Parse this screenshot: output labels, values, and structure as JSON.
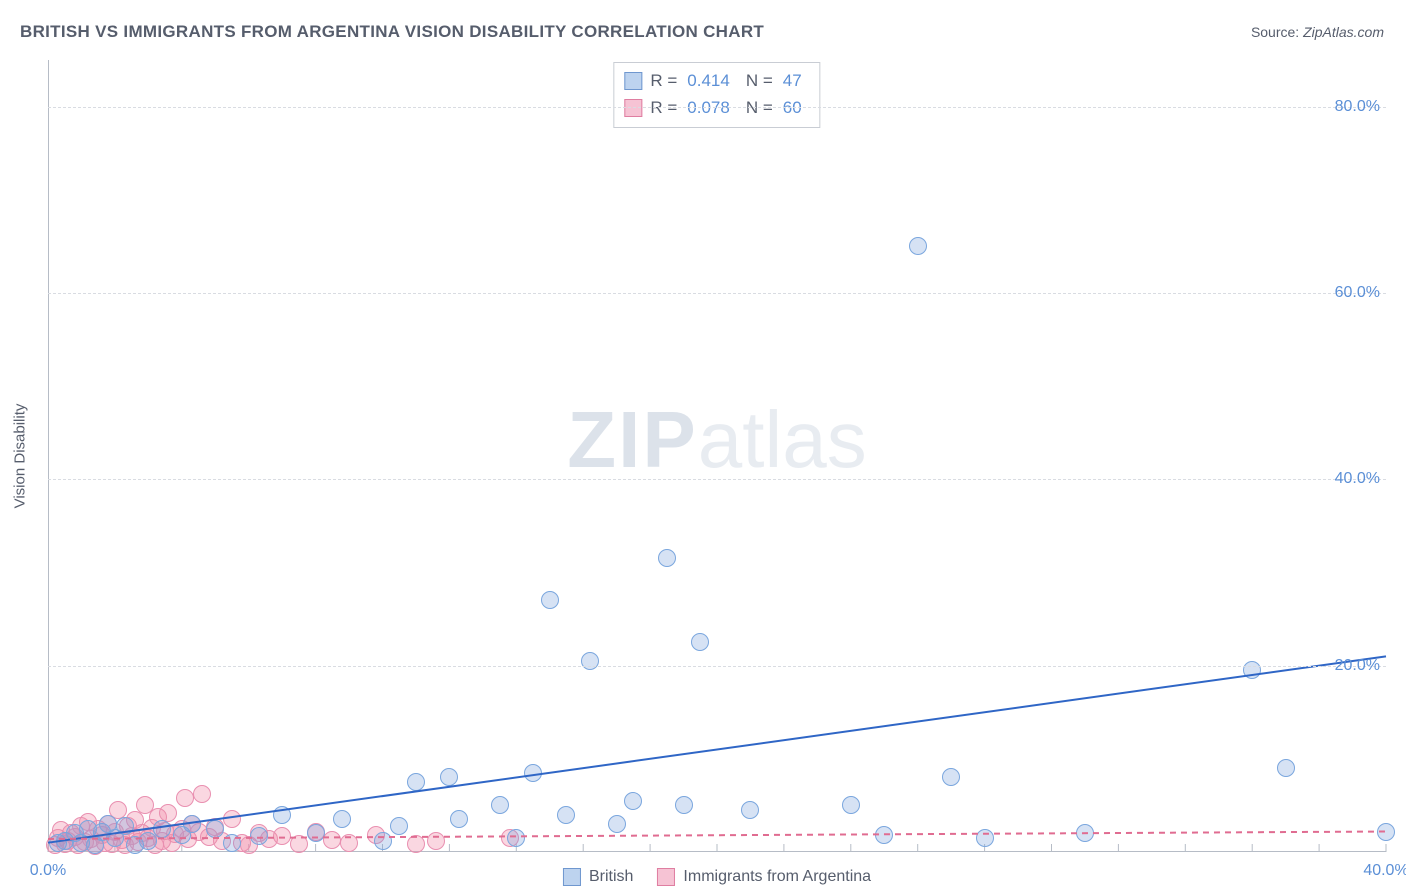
{
  "title": "BRITISH VS IMMIGRANTS FROM ARGENTINA VISION DISABILITY CORRELATION CHART",
  "source": {
    "label": "Source: ",
    "value": "ZipAtlas.com"
  },
  "ylabel": "Vision Disability",
  "watermark": {
    "bold": "ZIP",
    "light": "atlas"
  },
  "chart": {
    "type": "scatter",
    "background_color": "#ffffff",
    "grid_color": "#d9dce2",
    "axis_color": "#b6bcc6",
    "tick_font_color": "#5b8fd6",
    "label_font_color": "#565d6c",
    "title_fontsize": 17,
    "label_fontsize": 15,
    "tick_fontsize": 16,
    "xlim": [
      0,
      40
    ],
    "ylim": [
      0,
      85
    ],
    "x_major_ticks": [
      0,
      40
    ],
    "x_minor_step": 2,
    "y_ticks": [
      20,
      40,
      60,
      80
    ],
    "x_tick_format": "{v}.0%",
    "y_tick_format": "{v}.0%",
    "marker_radius": 9,
    "marker_stroke_width": 1,
    "line_width": 2,
    "series": [
      {
        "name": "British",
        "color_fill": "rgba(120,160,220,0.30)",
        "color_stroke": "#7aa6de",
        "legend_swatch_fill": "#bdd3ef",
        "legend_swatch_stroke": "#6f97cf",
        "R": "0.414",
        "N": "47",
        "trend": {
          "x1": 0,
          "y1": 1.0,
          "x2": 40,
          "y2": 21.0,
          "dash": "none",
          "color": "#2f66c6"
        },
        "points": [
          [
            0.3,
            1.0
          ],
          [
            0.5,
            1.2
          ],
          [
            0.8,
            2.0
          ],
          [
            1.0,
            1.0
          ],
          [
            1.2,
            2.5
          ],
          [
            1.4,
            0.8
          ],
          [
            1.6,
            2.2
          ],
          [
            1.8,
            3.0
          ],
          [
            2.0,
            1.5
          ],
          [
            2.3,
            2.8
          ],
          [
            2.6,
            0.7
          ],
          [
            3.0,
            1.2
          ],
          [
            3.4,
            2.5
          ],
          [
            4.0,
            1.8
          ],
          [
            4.3,
            3.0
          ],
          [
            5.0,
            2.5
          ],
          [
            5.5,
            1.0
          ],
          [
            6.3,
            1.7
          ],
          [
            7.0,
            4.0
          ],
          [
            8.0,
            2.0
          ],
          [
            8.8,
            3.5
          ],
          [
            10.0,
            1.2
          ],
          [
            10.5,
            2.8
          ],
          [
            11.0,
            7.5
          ],
          [
            12.0,
            8.0
          ],
          [
            12.3,
            3.5
          ],
          [
            13.5,
            5.0
          ],
          [
            14.0,
            1.5
          ],
          [
            14.5,
            8.5
          ],
          [
            15.0,
            27.0
          ],
          [
            15.5,
            4.0
          ],
          [
            16.2,
            20.5
          ],
          [
            17.0,
            3.0
          ],
          [
            17.5,
            5.5
          ],
          [
            18.5,
            31.5
          ],
          [
            19.0,
            5.0
          ],
          [
            19.5,
            22.5
          ],
          [
            21.0,
            4.5
          ],
          [
            24.0,
            5.0
          ],
          [
            25.0,
            1.8
          ],
          [
            26.0,
            65.0
          ],
          [
            27.0,
            8.0
          ],
          [
            28.0,
            1.5
          ],
          [
            31.0,
            2.0
          ],
          [
            36.0,
            19.5
          ],
          [
            37.0,
            9.0
          ],
          [
            40.0,
            2.2
          ]
        ]
      },
      {
        "name": "Immigrants from Argentina",
        "color_fill": "rgba(240,140,170,0.35)",
        "color_stroke": "#e98fb0",
        "legend_swatch_fill": "#f6c3d4",
        "legend_swatch_stroke": "#df7ea1",
        "R": "0.078",
        "N": "60",
        "trend": {
          "x1": 0,
          "y1": 1.4,
          "x2": 40,
          "y2": 2.2,
          "dash": "6,5",
          "color": "#e06c91"
        },
        "points": [
          [
            0.2,
            0.8
          ],
          [
            0.3,
            1.5
          ],
          [
            0.4,
            2.4
          ],
          [
            0.5,
            0.9
          ],
          [
            0.6,
            1.2
          ],
          [
            0.7,
            2.0
          ],
          [
            0.8,
            1.6
          ],
          [
            0.9,
            0.7
          ],
          [
            1.0,
            2.8
          ],
          [
            1.1,
            1.1
          ],
          [
            1.2,
            3.2
          ],
          [
            1.3,
            1.4
          ],
          [
            1.4,
            0.6
          ],
          [
            1.5,
            2.5
          ],
          [
            1.6,
            1.8
          ],
          [
            1.7,
            1.0
          ],
          [
            1.8,
            3.0
          ],
          [
            1.9,
            0.9
          ],
          [
            2.0,
            2.2
          ],
          [
            2.1,
            4.5
          ],
          [
            2.2,
            1.3
          ],
          [
            2.3,
            0.8
          ],
          [
            2.4,
            2.8
          ],
          [
            2.5,
            1.7
          ],
          [
            2.6,
            3.4
          ],
          [
            2.7,
            1.1
          ],
          [
            2.8,
            2.0
          ],
          [
            2.9,
            5.0
          ],
          [
            3.0,
            1.5
          ],
          [
            3.1,
            2.6
          ],
          [
            3.2,
            0.7
          ],
          [
            3.3,
            3.8
          ],
          [
            3.4,
            1.2
          ],
          [
            3.5,
            2.3
          ],
          [
            3.6,
            4.2
          ],
          [
            3.7,
            1.0
          ],
          [
            3.8,
            1.9
          ],
          [
            4.0,
            2.5
          ],
          [
            4.1,
            5.8
          ],
          [
            4.2,
            1.4
          ],
          [
            4.3,
            3.0
          ],
          [
            4.5,
            2.1
          ],
          [
            4.6,
            6.2
          ],
          [
            4.8,
            1.6
          ],
          [
            5.0,
            2.7
          ],
          [
            5.2,
            1.2
          ],
          [
            5.5,
            3.5
          ],
          [
            5.8,
            1.0
          ],
          [
            6.0,
            0.8
          ],
          [
            6.3,
            2.0
          ],
          [
            6.6,
            1.4
          ],
          [
            7.0,
            1.7
          ],
          [
            7.5,
            0.9
          ],
          [
            8.0,
            2.2
          ],
          [
            8.5,
            1.3
          ],
          [
            9.0,
            1.0
          ],
          [
            9.8,
            1.8
          ],
          [
            11.0,
            0.9
          ],
          [
            11.6,
            1.2
          ],
          [
            13.8,
            1.5
          ]
        ]
      }
    ],
    "legend_bottom": [
      {
        "label": "British",
        "fill": "#bdd3ef",
        "stroke": "#6f97cf"
      },
      {
        "label": "Immigrants from Argentina",
        "fill": "#f6c3d4",
        "stroke": "#df7ea1"
      }
    ]
  }
}
